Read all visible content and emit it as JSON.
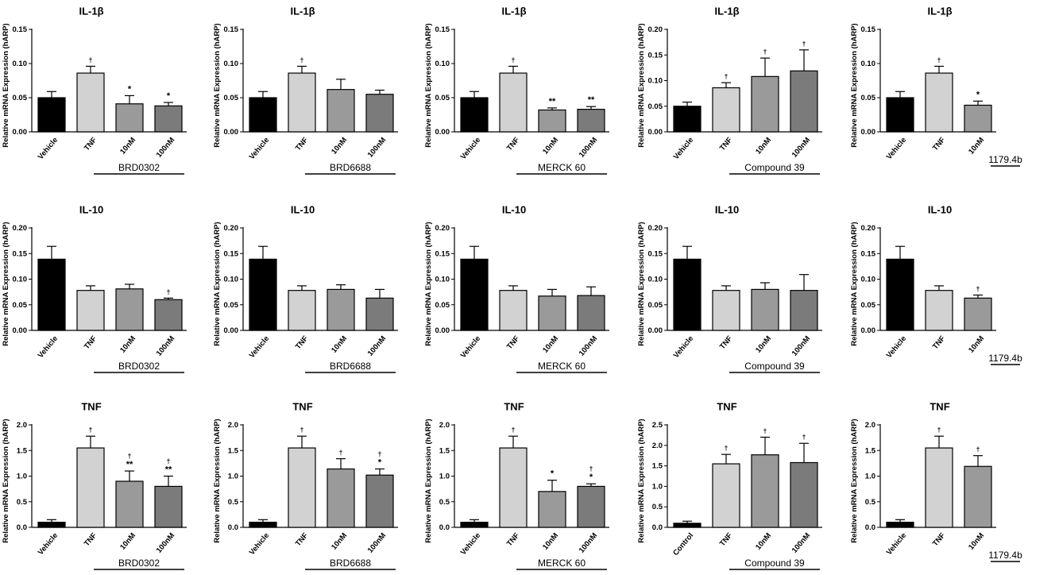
{
  "ylabel": "Relative mRNA Expression  (hARP)",
  "colors": {
    "Vehicle": "#000000",
    "Control": "#000000",
    "TNF": "#d2d2d2",
    "10nM": "#9a9a9a",
    "100nM": "#7b7b7b"
  },
  "chart_data": [
    {
      "type": "bar",
      "title": "IL-1β",
      "group_label": "BRD0302",
      "categories": [
        "Vehicle",
        "TNF",
        "10nM",
        "100nM"
      ],
      "values": [
        0.05,
        0.086,
        0.041,
        0.038
      ],
      "errors": [
        0.009,
        0.01,
        0.012,
        0.005
      ],
      "marks": [
        "",
        "†",
        "*",
        "*"
      ],
      "yticks": [
        "0.00",
        "0.05",
        "0.10",
        "0.15"
      ],
      "ylim": [
        0,
        0.15
      ]
    },
    {
      "type": "bar",
      "title": "IL-1β",
      "group_label": "BRD6688",
      "categories": [
        "Vehicle",
        "TNF",
        "10nM",
        "100nM"
      ],
      "values": [
        0.05,
        0.086,
        0.062,
        0.055
      ],
      "errors": [
        0.009,
        0.01,
        0.015,
        0.006
      ],
      "marks": [
        "",
        "†",
        "",
        ""
      ],
      "yticks": [
        "0.00",
        "0.05",
        "0.10",
        "0.15"
      ],
      "ylim": [
        0,
        0.15
      ]
    },
    {
      "type": "bar",
      "title": "IL-1β",
      "group_label": "MERCK 60",
      "categories": [
        "Vehicle",
        "TNF",
        "10nM",
        "100nM"
      ],
      "values": [
        0.05,
        0.086,
        0.032,
        0.033
      ],
      "errors": [
        0.009,
        0.01,
        0.003,
        0.004
      ],
      "marks": [
        "",
        "†",
        "**",
        "**"
      ],
      "yticks": [
        "0.00",
        "0.05",
        "0.10",
        "0.15"
      ],
      "ylim": [
        0,
        0.15
      ]
    },
    {
      "type": "bar",
      "title": "IL-1β",
      "group_label": "Compound 39",
      "categories": [
        "Vehicle",
        "TNF",
        "10nM",
        "100nM"
      ],
      "values": [
        0.05,
        0.086,
        0.108,
        0.119
      ],
      "errors": [
        0.008,
        0.01,
        0.036,
        0.041
      ],
      "marks": [
        "",
        "†",
        "†",
        "†"
      ],
      "yticks": [
        "0.00",
        "0.05",
        "0.10",
        "0.15",
        "0.20"
      ],
      "ylim": [
        0,
        0.2
      ]
    },
    {
      "type": "bar",
      "title": "IL-1β",
      "group_label": "1179.4b",
      "categories": [
        "Vehicle",
        "TNF",
        "10nM"
      ],
      "values": [
        0.05,
        0.086,
        0.039
      ],
      "errors": [
        0.009,
        0.01,
        0.006
      ],
      "marks": [
        "",
        "†",
        "*"
      ],
      "yticks": [
        "0.00",
        "0.05",
        "0.10",
        "0.15"
      ],
      "ylim": [
        0,
        0.15
      ]
    },
    {
      "type": "bar",
      "title": "IL-10",
      "group_label": "BRD0302",
      "categories": [
        "Vehicle",
        "TNF",
        "10nM",
        "100nM"
      ],
      "values": [
        0.139,
        0.078,
        0.081,
        0.06
      ],
      "errors": [
        0.025,
        0.009,
        0.009,
        0.003
      ],
      "marks": [
        "",
        "",
        "",
        "†"
      ],
      "yticks": [
        "0.00",
        "0.05",
        "0.10",
        "0.15",
        "0.20"
      ],
      "ylim": [
        0,
        0.2
      ]
    },
    {
      "type": "bar",
      "title": "IL-10",
      "group_label": "BRD6688",
      "categories": [
        "Vehicle",
        "TNF",
        "10nM",
        "100nM"
      ],
      "values": [
        0.139,
        0.078,
        0.08,
        0.063
      ],
      "errors": [
        0.025,
        0.009,
        0.009,
        0.017
      ],
      "marks": [
        "",
        "",
        "",
        ""
      ],
      "yticks": [
        "0.00",
        "0.05",
        "0.10",
        "0.15",
        "0.20"
      ],
      "ylim": [
        0,
        0.2
      ]
    },
    {
      "type": "bar",
      "title": "IL-10",
      "group_label": "MERCK 60",
      "categories": [
        "Vehicle",
        "TNF",
        "10nM",
        "100nM"
      ],
      "values": [
        0.139,
        0.078,
        0.067,
        0.068
      ],
      "errors": [
        0.025,
        0.009,
        0.013,
        0.017
      ],
      "marks": [
        "",
        "",
        "",
        ""
      ],
      "yticks": [
        "0.00",
        "0.05",
        "0.10",
        "0.15",
        "0.20"
      ],
      "ylim": [
        0,
        0.2
      ]
    },
    {
      "type": "bar",
      "title": "IL-10",
      "group_label": "Compound 39",
      "categories": [
        "Vehicle",
        "TNF",
        "10nM",
        "100nM"
      ],
      "values": [
        0.139,
        0.078,
        0.08,
        0.078
      ],
      "errors": [
        0.025,
        0.009,
        0.013,
        0.031
      ],
      "marks": [
        "",
        "",
        "",
        ""
      ],
      "yticks": [
        "0.00",
        "0.05",
        "0.10",
        "0.15",
        "0.20"
      ],
      "ylim": [
        0,
        0.2
      ]
    },
    {
      "type": "bar",
      "title": "IL-10",
      "group_label": "1179.4b",
      "categories": [
        "Vehicle",
        "TNF",
        "10nM"
      ],
      "values": [
        0.139,
        0.078,
        0.063
      ],
      "errors": [
        0.025,
        0.009,
        0.006
      ],
      "marks": [
        "",
        "",
        "†"
      ],
      "yticks": [
        "0.00",
        "0.05",
        "0.10",
        "0.15",
        "0.20"
      ],
      "ylim": [
        0,
        0.2
      ]
    },
    {
      "type": "bar",
      "title": "TNF",
      "group_label": "BRD0302",
      "categories": [
        "Vehicle",
        "TNF",
        "10nM",
        "100nM"
      ],
      "values": [
        0.1,
        1.55,
        0.9,
        0.8
      ],
      "errors": [
        0.05,
        0.23,
        0.2,
        0.2
      ],
      "marks": [
        "",
        "†",
        "†\n**",
        "†\n**"
      ],
      "yticks": [
        "0.0",
        "0.5",
        "1.0",
        "1.5",
        "2.0"
      ],
      "ylim": [
        0,
        2.0
      ]
    },
    {
      "type": "bar",
      "title": "TNF",
      "group_label": "BRD6688",
      "categories": [
        "Vehicle",
        "TNF",
        "10nM",
        "100nM"
      ],
      "values": [
        0.1,
        1.55,
        1.14,
        1.02
      ],
      "errors": [
        0.05,
        0.23,
        0.2,
        0.12
      ],
      "marks": [
        "",
        "†",
        "†",
        "†\n*"
      ],
      "yticks": [
        "0.0",
        "0.5",
        "1.0",
        "1.5",
        "2.0"
      ],
      "ylim": [
        0,
        2.0
      ]
    },
    {
      "type": "bar",
      "title": "TNF",
      "group_label": "MERCK 60",
      "categories": [
        "Vehicle",
        "TNF",
        "10nM",
        "100nM"
      ],
      "values": [
        0.1,
        1.55,
        0.7,
        0.8
      ],
      "errors": [
        0.05,
        0.23,
        0.22,
        0.05
      ],
      "marks": [
        "",
        "†",
        "*",
        "†\n*"
      ],
      "yticks": [
        "0.0",
        "0.5",
        "1.0",
        "1.5",
        "2.0"
      ],
      "ylim": [
        0,
        2.0
      ]
    },
    {
      "type": "bar",
      "title": "TNF",
      "group_label": "Compound 39",
      "categories": [
        "Control",
        "TNF",
        "10nM",
        "100nM"
      ],
      "values": [
        0.1,
        1.55,
        1.77,
        1.58
      ],
      "errors": [
        0.05,
        0.23,
        0.43,
        0.47
      ],
      "marks": [
        "",
        "†",
        "†",
        "†"
      ],
      "yticks": [
        "0.0",
        "0.5",
        "1.0",
        "1.5",
        "2.0",
        "2.5"
      ],
      "ylim": [
        0,
        2.5
      ]
    },
    {
      "type": "bar",
      "title": "TNF",
      "group_label": "1179.4b",
      "categories": [
        "Vehicle",
        "TNF",
        "10nM"
      ],
      "values": [
        0.1,
        1.55,
        1.19
      ],
      "errors": [
        0.05,
        0.23,
        0.21
      ],
      "marks": [
        "",
        "†",
        "†"
      ],
      "yticks": [
        "0.0",
        "0.5",
        "1.0",
        "1.5",
        "2.0"
      ],
      "ylim": [
        0,
        2.0
      ]
    }
  ]
}
